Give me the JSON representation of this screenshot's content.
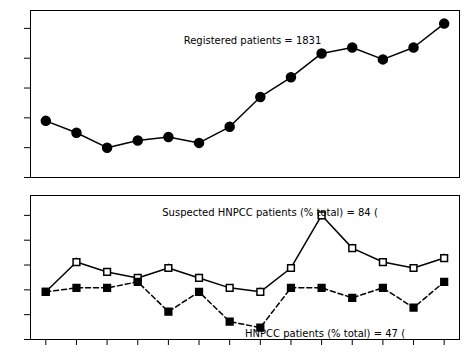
{
  "chart_data": [
    {
      "type": "line",
      "x": [
        0,
        1,
        2,
        3,
        4,
        5,
        6,
        7,
        8,
        9,
        10,
        11,
        12,
        13
      ],
      "xlim": [
        -0.5,
        13.5
      ],
      "ylim": [
        100,
        380
      ],
      "yticks": [
        100,
        150,
        200,
        250,
        300,
        350
      ],
      "tick_labels": false,
      "series": [
        {
          "color": "black",
          "marker": "circle",
          "line_style": "solid",
          "values": [
            195,
            175,
            150,
            162,
            168,
            158,
            185,
            235,
            268,
            308,
            318,
            298,
            318,
            358
          ]
        }
      ],
      "annotations": [
        {
          "text": "Registered patients = 1831",
          "x": 4.5,
          "y": 330
        }
      ]
    },
    {
      "type": "line",
      "x": [
        0,
        1,
        2,
        3,
        4,
        5,
        6,
        7,
        8,
        9,
        10,
        11,
        12,
        13
      ],
      "xlim": [
        -0.5,
        13.5
      ],
      "xticks": [
        0,
        1,
        2,
        3,
        4,
        5,
        6,
        7,
        8,
        9,
        10,
        11,
        12,
        13
      ],
      "ylim": [
        0,
        145
      ],
      "yticks": [
        0,
        25,
        50,
        75,
        100,
        125
      ],
      "tick_labels": false,
      "series": [
        {
          "color": "black",
          "marker": "square_open",
          "line_style": "solid",
          "values": [
            48,
            78,
            68,
            62,
            72,
            62,
            52,
            48,
            72,
            125,
            92,
            78,
            72,
            82
          ],
          "errors": [
            3,
            4,
            3,
            3,
            4,
            4,
            3,
            4,
            3,
            5,
            4,
            3,
            3,
            4
          ]
        },
        {
          "color": "black",
          "marker": "square",
          "line_style": "dashed",
          "values": [
            48,
            52,
            52,
            58,
            28,
            48,
            18,
            12,
            52,
            52,
            42,
            52,
            32,
            58
          ]
        }
      ],
      "annotations": [
        {
          "text": "Suspected HNPCC patients (% total) = 84 (",
          "x": 3.8,
          "y": 128
        },
        {
          "text": "HNPCC patients (% total) = 47 (",
          "x": 6.5,
          "y": 6
        }
      ]
    }
  ]
}
